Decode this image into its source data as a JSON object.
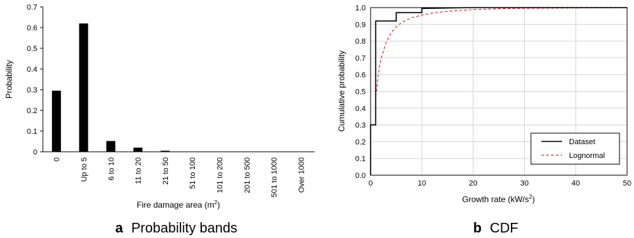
{
  "chart_data": [
    {
      "type": "bar",
      "panel_letter": "a",
      "caption": "Probability bands",
      "xlabel": "Fire damage area (m",
      "xlabel_sup": "2",
      "xlabel_suffix": ")",
      "ylabel": "Probability",
      "ylim": [
        0,
        0.7
      ],
      "yticks": [
        "0",
        "0.1",
        "0.2",
        "0.3",
        "0.4",
        "0.5",
        "0.6",
        "0.7"
      ],
      "categories": [
        "0",
        "Up to 5",
        "6 to 10",
        "11 to 20",
        "21 to 50",
        "51 to 100",
        "101 to 200",
        "201 to 500",
        "501 to 1000",
        "Over 1000"
      ],
      "values": [
        0.295,
        0.62,
        0.052,
        0.02,
        0.005,
        0,
        0,
        0,
        0,
        0
      ],
      "bar_color": "#000000",
      "grid": false
    },
    {
      "type": "line",
      "panel_letter": "b",
      "caption": "CDF",
      "xlabel": "Growth rate (kW/s",
      "xlabel_sup": "2",
      "xlabel_suffix": ")",
      "ylabel": "Cumulative probability",
      "xlim": [
        0,
        50
      ],
      "ylim": [
        0,
        1
      ],
      "xticks": [
        "0",
        "10",
        "20",
        "30",
        "40",
        "50"
      ],
      "yticks": [
        "0.0",
        "0.1",
        "0.2",
        "0.3",
        "0.4",
        "0.5",
        "0.6",
        "0.7",
        "0.8",
        "0.9",
        "1.0"
      ],
      "grid": true,
      "legend_position": "bottom-right",
      "series": [
        {
          "name": "Dataset",
          "style": "step",
          "color": "#000000",
          "x": [
            0,
            0,
            1,
            1,
            5,
            5,
            10,
            10,
            20,
            50
          ],
          "y": [
            0,
            0.3,
            0.3,
            0.92,
            0.92,
            0.97,
            0.97,
            0.995,
            1.0,
            1.0
          ]
        },
        {
          "name": "Lognormal",
          "style": "dashed",
          "color": "#e8312a",
          "x": [
            1,
            1.5,
            2,
            3,
            4,
            5,
            6,
            8,
            10,
            12,
            15,
            20,
            25,
            30,
            40,
            50
          ],
          "y": [
            0.47,
            0.6,
            0.69,
            0.79,
            0.85,
            0.885,
            0.91,
            0.94,
            0.955,
            0.967,
            0.978,
            0.988,
            0.993,
            0.996,
            0.998,
            0.999
          ]
        }
      ]
    }
  ]
}
